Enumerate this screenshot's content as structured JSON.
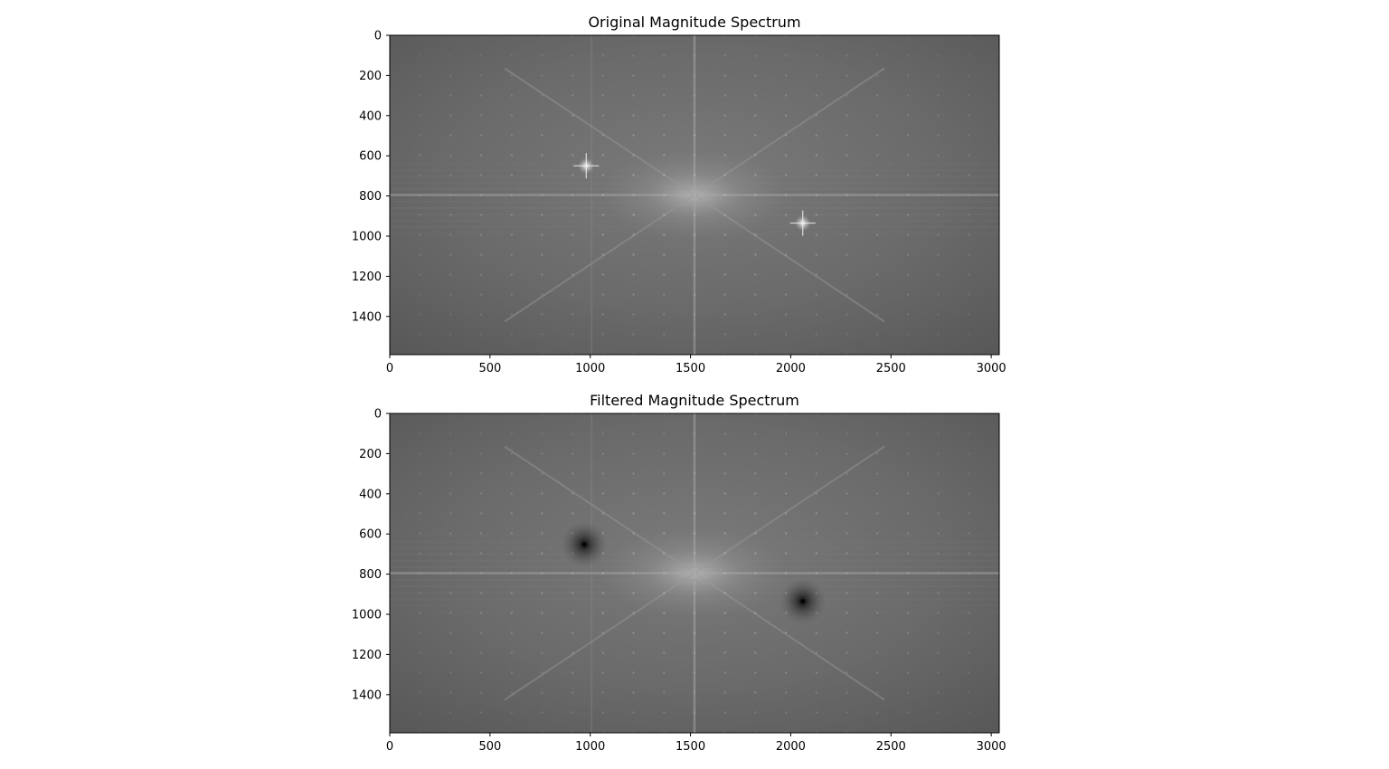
{
  "chart_data": [
    {
      "type": "heatmap",
      "title": "Original Magnitude Spectrum",
      "colormap": "gray",
      "xlim": [
        0,
        3040
      ],
      "ylim": [
        1590,
        0
      ],
      "grid": false,
      "xticks": [
        0,
        500,
        1000,
        1500,
        2000,
        2500,
        3000
      ],
      "yticks": [
        0,
        200,
        400,
        600,
        800,
        1000,
        1200,
        1400
      ],
      "center": [
        1520,
        795
      ],
      "bright_peaks": [
        [
          980,
          650
        ],
        [
          2060,
          935
        ]
      ],
      "notches": []
    },
    {
      "type": "heatmap",
      "title": "Filtered Magnitude Spectrum",
      "colormap": "gray",
      "xlim": [
        0,
        3040
      ],
      "ylim": [
        1590,
        0
      ],
      "grid": false,
      "xticks": [
        0,
        500,
        1000,
        1500,
        2000,
        2500,
        3000
      ],
      "yticks": [
        0,
        200,
        400,
        600,
        800,
        1000,
        1200,
        1400
      ],
      "center": [
        1520,
        795
      ],
      "bright_peaks": [],
      "notches": [
        [
          970,
          652
        ],
        [
          2060,
          935
        ]
      ]
    }
  ]
}
